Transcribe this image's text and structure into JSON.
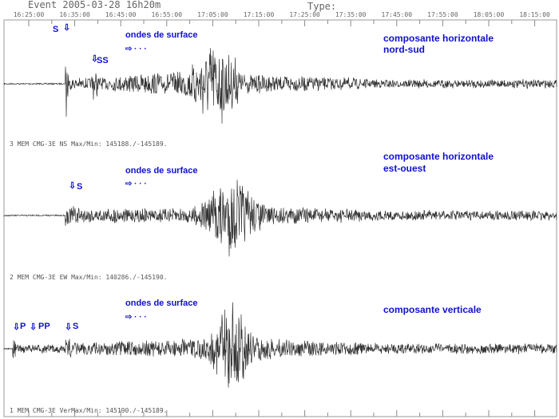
{
  "header": {
    "event": "Event 2005-03-28  16h20m",
    "type_label": "Type:"
  },
  "chart_data": {
    "type": "line",
    "title": "",
    "xlabel": "",
    "ylabel": "",
    "x_tick_labels": [
      "16:25:00",
      "16:35:00",
      "16:45:00",
      "16:55:00",
      "17:05:00",
      "17:15:00",
      "17:25:00",
      "17:35:00",
      "17:45:00",
      "17:55:00",
      "18:05:00",
      "18:15:00"
    ],
    "grid": false,
    "trace_color": "#333333",
    "annotation_color": "#1010d0",
    "series": [
      {
        "name": "composante horizontale nord-sud",
        "name_lines": [
          "composante horizontale",
          "nord-sud"
        ],
        "info": "3 MEM   CMG-3E NS Max/Min: 145188./-145189.",
        "phases": [
          "S",
          "SS"
        ],
        "surface_label": "ondes de surface",
        "arrow": "⇨ · · ·"
      },
      {
        "name": "composante horizontale est-ouest",
        "name_lines": [
          "composante horizontale",
          "est-ouest"
        ],
        "info": "2 MEM   CMG-3E EW Max/Min: 140286./-145190.",
        "phases": [
          "S"
        ],
        "surface_label": "ondes de surface",
        "arrow": "⇨ · · ·"
      },
      {
        "name": "composante verticale",
        "name_lines": [
          "composante verticale"
        ],
        "info": "1 MEM   CMG-3E VerMax/Min: 145190./-145189.",
        "phases": [
          "P",
          "PP",
          "S"
        ],
        "surface_label": "ondes de surface",
        "arrow": "⇨ · · ·"
      }
    ]
  }
}
